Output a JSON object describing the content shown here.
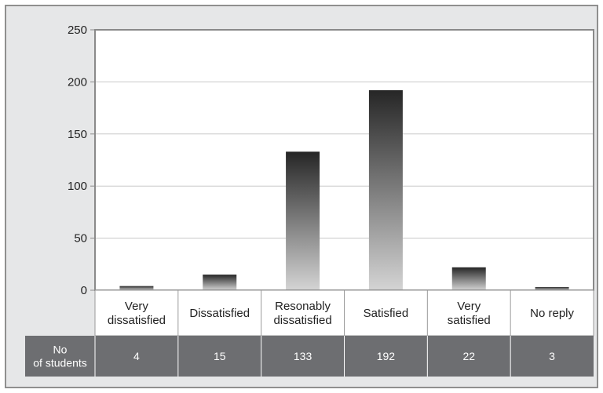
{
  "chart_data": {
    "type": "bar",
    "title": "",
    "xlabel": "",
    "ylabel": "",
    "categories": [
      [
        "Very",
        "dissatisfied"
      ],
      [
        "Dissatisfied"
      ],
      [
        "Resonably",
        "dissatisfied"
      ],
      [
        "Satisfied"
      ],
      [
        "Very",
        "satisfied"
      ],
      [
        "No reply"
      ]
    ],
    "values": [
      4,
      15,
      133,
      192,
      22,
      3
    ],
    "ylim": [
      0,
      250
    ],
    "yticks": [
      0,
      50,
      100,
      150,
      200,
      250
    ],
    "grid": true,
    "table_row_label": [
      "No",
      "of students"
    ],
    "table_values": [
      "4",
      "15",
      "133",
      "192",
      "22",
      "3"
    ],
    "colors": {
      "bar_top": "#262626",
      "bar_bottom": "#d4d4d4",
      "frame_bg": "#e6e7e8",
      "plot_bg": "#ffffff",
      "table_row_bg": "#6d6e71",
      "axis": "#8a8a8a"
    }
  }
}
